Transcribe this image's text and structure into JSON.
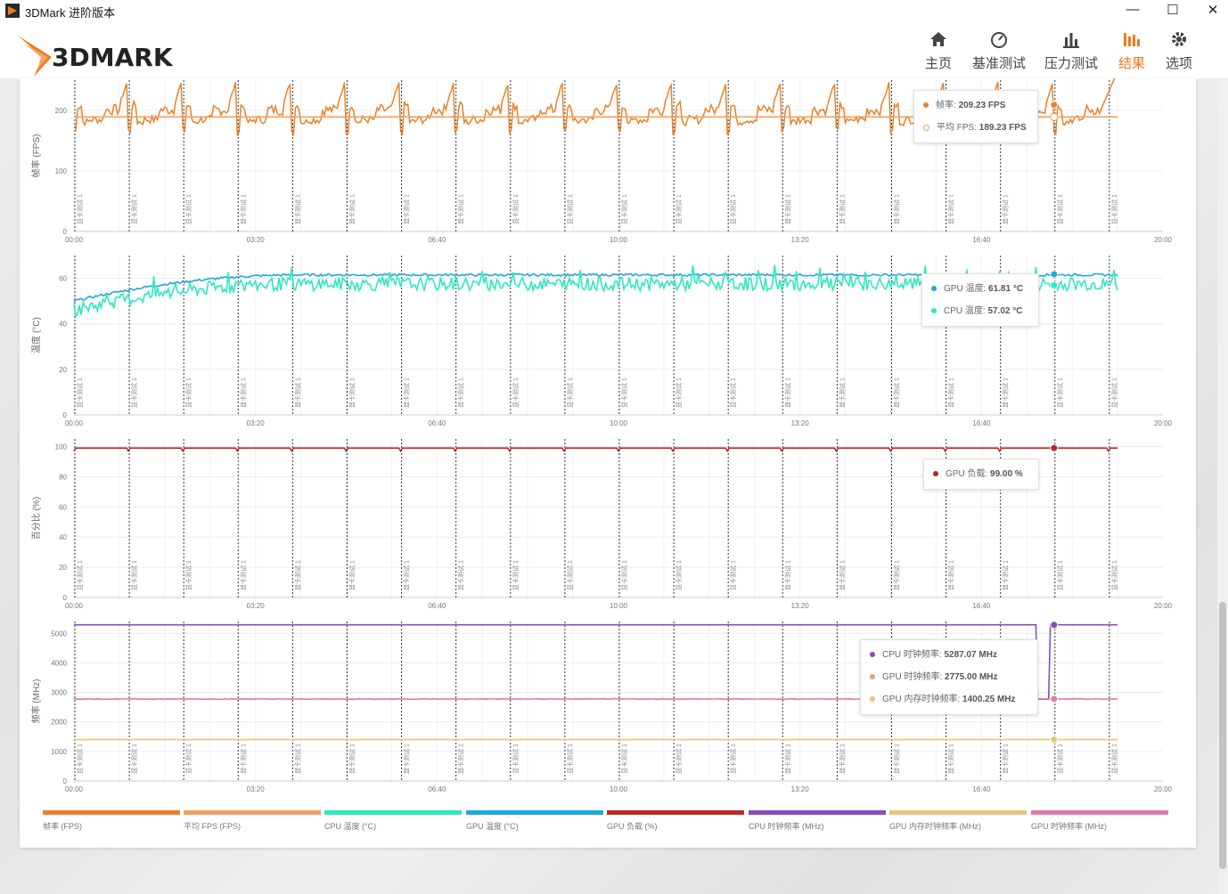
{
  "window": {
    "title": "3DMark 进阶版本",
    "minimize": "—",
    "maximize": "☐",
    "close": "✕"
  },
  "header": {
    "logo": "3DMARK",
    "nav": [
      {
        "label": "主页",
        "icon": "home-icon"
      },
      {
        "label": "基准测试",
        "icon": "gauge-icon"
      },
      {
        "label": "压力测试",
        "icon": "bar-chart-icon"
      },
      {
        "label": "结果",
        "icon": "results-icon",
        "active": true
      },
      {
        "label": "选项",
        "icon": "gear-icon"
      }
    ]
  },
  "colors": {
    "accent": "#f0781e",
    "fps": "#e8822a",
    "avg_fps": "#f0a060",
    "cpu_temp": "#2ee8c0",
    "gpu_temp": "#1fa8dc",
    "gpu_load": "#b8282c",
    "cpu_clock": "#8a4cb8",
    "gpu_mem_clock": "#e8c478",
    "gpu_clock": "#e07aa8"
  },
  "marker_label": "显卡测试 1",
  "chart_data": [
    {
      "type": "line",
      "ylabel": "帧率 (FPS)",
      "y_ticks": [
        "0",
        "100",
        "200"
      ],
      "ylim": [
        0,
        250
      ],
      "x_ticks": [
        "00:00",
        "03:20",
        "06:40",
        "10:00",
        "13:20",
        "16:40",
        "20:00"
      ],
      "xlim_seconds": [
        0,
        1200
      ],
      "test_loops": 20,
      "series": [
        {
          "name": "帧率",
          "shape": "spiky",
          "base": 189,
          "low": 160,
          "high": 255,
          "current": 209.23
        },
        {
          "name": "平均 FPS",
          "shape": "flat",
          "base": 189.23,
          "current": 189.23
        }
      ],
      "tooltip": [
        {
          "label": "帧率",
          "value": "209.23 FPS"
        },
        {
          "label": "平均 FPS",
          "value": "189.23 FPS"
        }
      ]
    },
    {
      "type": "line",
      "ylabel": "温度 (°C)",
      "y_ticks": [
        "0",
        "20",
        "40",
        "60"
      ],
      "ylim": [
        0,
        70
      ],
      "x_ticks": [
        "00:00",
        "03:20",
        "06:40",
        "10:00",
        "13:20",
        "16:40",
        "20:00"
      ],
      "xlim_seconds": [
        0,
        1200
      ],
      "series": [
        {
          "name": "GPU 温度",
          "start": 50,
          "plateau": 61.5,
          "noise": 0.5,
          "current": 61.81
        },
        {
          "name": "CPU 温度",
          "start": 46,
          "plateau": 57.5,
          "noise": 3,
          "current": 57.02
        }
      ],
      "tooltip": [
        {
          "label": "GPU 温度",
          "value": "61.81 °C"
        },
        {
          "label": "CPU 温度",
          "value": "57.02 °C"
        }
      ]
    },
    {
      "type": "line",
      "ylabel": "百分比 (%)",
      "y_ticks": [
        "0",
        "20",
        "40",
        "60",
        "80",
        "100"
      ],
      "ylim": [
        0,
        105
      ],
      "x_ticks": [
        "00:00",
        "03:20",
        "06:40",
        "10:00",
        "13:20",
        "16:40",
        "20:00"
      ],
      "xlim_seconds": [
        0,
        1200
      ],
      "series": [
        {
          "name": "GPU 负载",
          "base": 99,
          "dip": 97,
          "current": 99.0
        }
      ],
      "tooltip": [
        {
          "label": "GPU 负载",
          "value": "99.00 %"
        }
      ]
    },
    {
      "type": "line",
      "ylabel": "频率 (MHz)",
      "y_ticks": [
        "0",
        "1000",
        "2000",
        "3000",
        "4000",
        "5000"
      ],
      "ylim": [
        0,
        5400
      ],
      "x_ticks": [
        "00:00",
        "03:20",
        "06:40",
        "10:00",
        "13:20",
        "16:40",
        "20:00"
      ],
      "xlim_seconds": [
        0,
        1200
      ],
      "series": [
        {
          "name": "CPU 时钟频率",
          "base": 5287,
          "current": 5287.07
        },
        {
          "name": "GPU 时钟频率",
          "base": 2775,
          "current": 2775.0
        },
        {
          "name": "GPU 内存时钟频率",
          "base": 1400,
          "current": 1400.25
        }
      ],
      "tooltip": [
        {
          "label": "CPU 时钟频率",
          "value": "5287.07 MHz"
        },
        {
          "label": "GPU 时钟频率",
          "value": "2775.00 MHz"
        },
        {
          "label": "GPU 内存时钟频率",
          "value": "1400.25 MHz"
        }
      ]
    }
  ],
  "legend": [
    {
      "label": "帧率 (FPS)",
      "color": "#e8822a"
    },
    {
      "label": "平均 FPS (FPS)",
      "color": "#f0a060"
    },
    {
      "label": "CPU 温度 (°C)",
      "color": "#2ee8c0"
    },
    {
      "label": "GPU 温度 (°C)",
      "color": "#1fa8dc"
    },
    {
      "label": "GPU 负载 (%)",
      "color": "#b8282c"
    },
    {
      "label": "CPU 时钟频率 (MHz)",
      "color": "#8a4cb8"
    },
    {
      "label": "GPU 内存时钟频率 (MHz)",
      "color": "#e8c478"
    },
    {
      "label": "GPU 时钟频率 (MHz)",
      "color": "#e07aa8"
    }
  ]
}
